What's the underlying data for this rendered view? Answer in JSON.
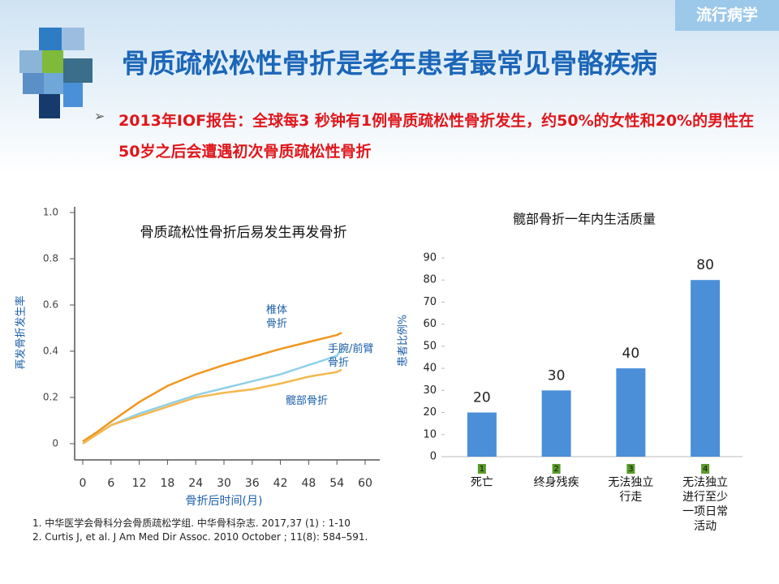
{
  "tag": "流行病学",
  "header": {
    "title": "骨质疏松松性骨折是老年患者最常见骨骼疾病"
  },
  "bullet": "2013年IOF报告：全球每3 秒钟有1例骨质疏松性骨折发生，约50%的女性和20%的男性在50岁之后会遭遇初次骨质疏松性骨折",
  "references": [
    "1. 中华医学会骨科分会骨质疏松学组. 中华骨科杂志. 2017,37 (1) : 1-10",
    "2. Curtis J, et al. J Am Med Dir Assoc. 2010 October ; 11(8): 584–591."
  ],
  "chart_data": [
    {
      "type": "line",
      "title": "骨质疏松性骨折后易发生再发骨折",
      "x_label": "骨折后时间(月)",
      "y_label": "再发骨折发生率",
      "x": [
        0,
        3,
        6,
        12,
        18,
        24,
        30,
        36,
        42,
        48,
        54,
        55
      ],
      "series": [
        {
          "name": "椎体骨折",
          "color": "#f0961e",
          "values": [
            0.01,
            0.05,
            0.095,
            0.18,
            0.25,
            0.3,
            0.34,
            0.375,
            0.41,
            0.44,
            0.47,
            0.48
          ]
        },
        {
          "name": "手腕/前臂骨折",
          "color": "#8fd0e8",
          "values": [
            0.0,
            0.04,
            0.08,
            0.13,
            0.17,
            0.21,
            0.24,
            0.27,
            0.3,
            0.34,
            0.38,
            0.41
          ]
        },
        {
          "name": "髋部骨折",
          "color": "#f5b84e",
          "values": [
            0.0,
            0.04,
            0.08,
            0.12,
            0.16,
            0.2,
            0.22,
            0.235,
            0.26,
            0.29,
            0.31,
            0.32
          ]
        }
      ],
      "xlim": [
        0,
        60
      ],
      "xticks": [
        0,
        6,
        12,
        18,
        24,
        30,
        36,
        42,
        48,
        54,
        60
      ],
      "ylim": [
        0,
        1
      ],
      "yticks": [
        0,
        0.2,
        0.4,
        0.6,
        0.8,
        {
          "value": 1,
          "label": "1.0"
        }
      ]
    },
    {
      "type": "bar",
      "title": "髋部骨折一年内生活质量",
      "y_label": "患者比例%",
      "category_markers": [
        "1",
        "2",
        "3",
        "4"
      ],
      "categories": [
        "死亡",
        "终身残疾",
        "无法独立行走",
        "无法独立进行至少一项日常活动"
      ],
      "values": [
        20,
        30,
        40,
        80
      ],
      "color": "#4a8fd8",
      "ylim": [
        0,
        90
      ],
      "yticks": [
        0,
        10,
        20,
        30,
        40,
        50,
        60,
        70,
        80,
        90
      ]
    }
  ]
}
